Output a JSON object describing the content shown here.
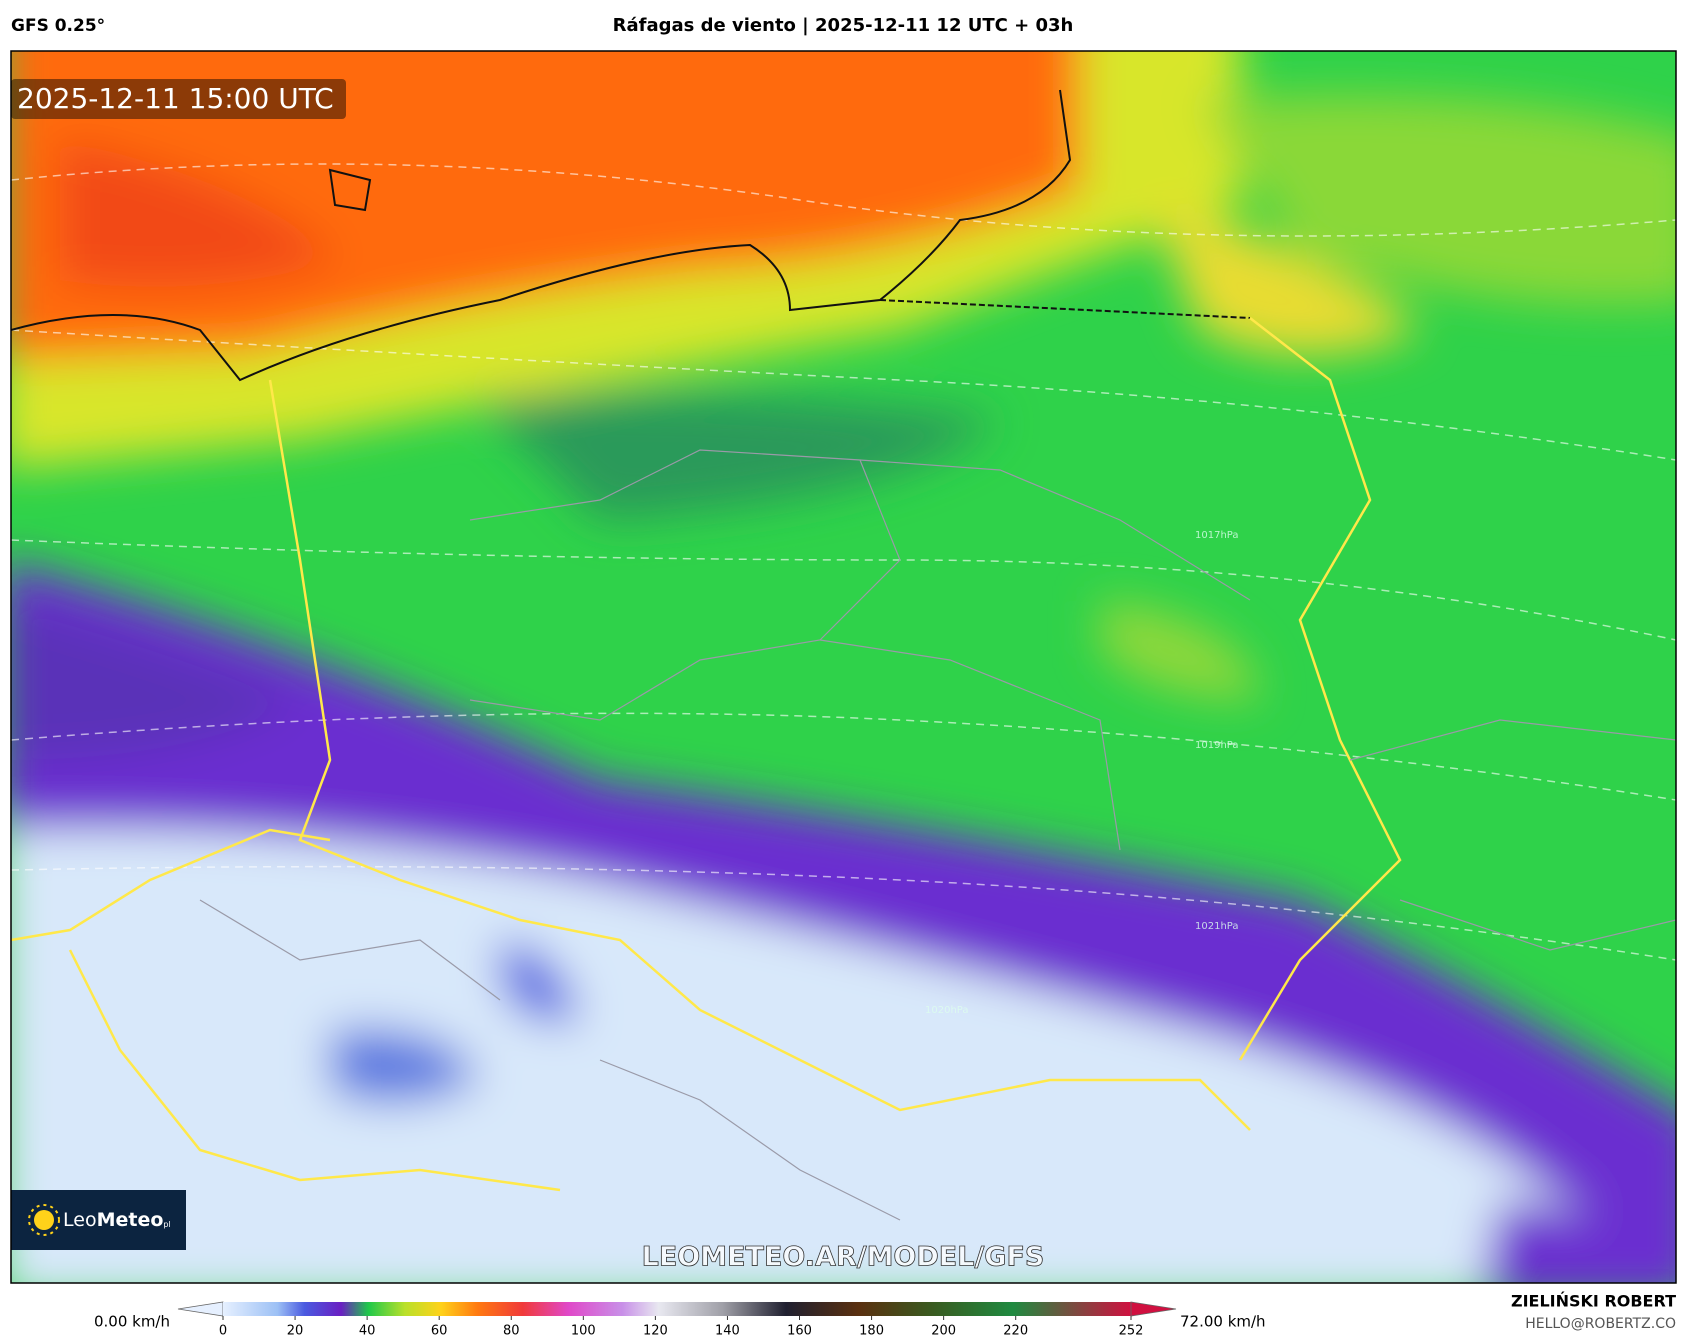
{
  "header": {
    "model": "GFS 0.25°",
    "title": "Ráfagas de viento | 2025-12-11 12 UTC + 03h"
  },
  "map": {
    "valid_time": "2025-12-11 15:00 UTC",
    "isobar_labels": [
      "1017hPa",
      "1019hPa",
      "1021hPa",
      "1020hPa"
    ],
    "logo": {
      "prefix": "Leo",
      "bold": "Meteo",
      "suffix": "pl"
    },
    "watermark": "LEOMETEO.AR/MODEL/GFS"
  },
  "colorbar": {
    "min_label": "0.00 km/h",
    "max_label": "72.00 km/h",
    "ticks": [
      0,
      20,
      40,
      60,
      80,
      100,
      120,
      140,
      160,
      180,
      200,
      220,
      252
    ]
  },
  "footer": {
    "author": "ZIELIŃSKI ROBERT",
    "email": "HELLO@ROBERTZ.CO"
  }
}
